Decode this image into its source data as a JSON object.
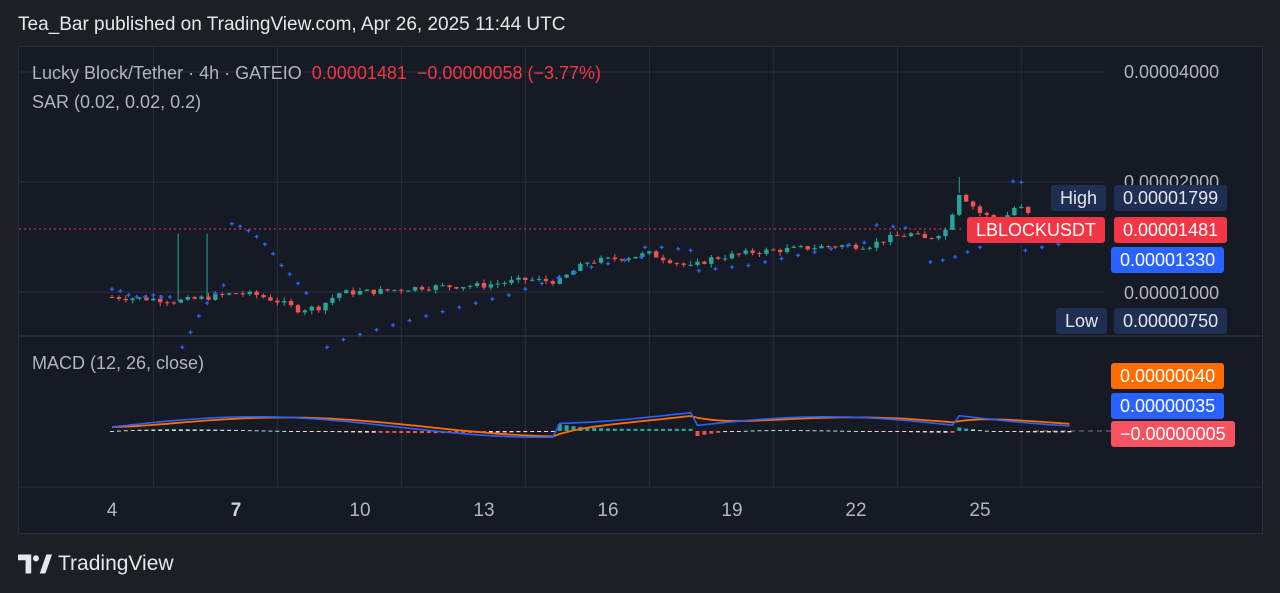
{
  "header": {
    "published": "Tea_Bar published on TradingView.com, Apr 26, 2025 11:44 UTC"
  },
  "legend": {
    "symbol": "Lucky Block/Tether · 4h · GATEIO",
    "price": "0.00001481",
    "change": "−0.00000058 (−3.77%)",
    "sar": "SAR (0.02, 0.02, 0.2)",
    "macd": "MACD (12, 26, close)"
  },
  "price_axis": {
    "labels": [
      "0.00004000",
      "0.00002000",
      "0.00001000"
    ]
  },
  "tags": {
    "high_label": "High",
    "high_value": "0.00001799",
    "symbol": "LBLOCKUSDT",
    "last_value": "0.00001481",
    "sar_value": "0.00001330",
    "low_label": "Low",
    "low_value": "0.00000750",
    "macd_signal": "0.00000040",
    "macd_line": "0.00000035",
    "macd_hist": "−0.00000005"
  },
  "time_axis": {
    "labels": [
      "4",
      "7",
      "10",
      "13",
      "16",
      "19",
      "22",
      "25"
    ],
    "bold_label": "7"
  },
  "footer": {
    "brand": "TradingView"
  },
  "colors": {
    "up": "#26a69a",
    "down": "#ef5350",
    "sar": "#2962ff",
    "macd": "#2962ff",
    "signal": "#ff6d00",
    "background": "#161a25"
  },
  "chart_data": {
    "type": "candlestick",
    "symbol": "Lucky Block/Tether",
    "timeframe": "4h",
    "exchange": "GATEIO",
    "y_ticks": [
      4e-05,
      2e-05,
      1e-05
    ],
    "y_scale": "log",
    "last_price": 1.481e-05,
    "period_high": 1.799e-05,
    "period_low": 7.5e-06,
    "sar_last": 1.33e-05,
    "macd_last": {
      "macd": 3.5e-07,
      "signal": 4e-07,
      "histogram": -5e-08
    },
    "x_day_labels": [
      "4",
      "7",
      "10",
      "13",
      "16",
      "19",
      "22",
      "25"
    ],
    "sar_points": [
      [
        3.0,
        1.02e-05
      ],
      [
        3.2,
        1.01e-05
      ],
      [
        3.4,
        9.9e-06
      ],
      [
        3.6,
        9.8e-06
      ],
      [
        3.8,
        9.8e-06
      ],
      [
        4.0,
        9.9e-06
      ],
      [
        4.2,
        9.8e-06
      ],
      [
        4.4,
        9.8e-06
      ],
      [
        4.7,
        7.6e-06
      ],
      [
        4.9,
        8.2e-06
      ],
      [
        5.1,
        8.9e-06
      ],
      [
        5.3,
        9.5e-06
      ],
      [
        5.5,
        1e-05
      ],
      [
        5.7,
        1.04e-05
      ],
      [
        5.9,
        1.42e-05
      ],
      [
        6.1,
        1.4e-05
      ],
      [
        6.3,
        1.37e-05
      ],
      [
        6.5,
        1.33e-05
      ],
      [
        6.7,
        1.28e-05
      ],
      [
        6.9,
        1.22e-05
      ],
      [
        7.1,
        1.15e-05
      ],
      [
        7.3,
        1.1e-05
      ],
      [
        7.5,
        1.05e-05
      ],
      [
        7.7,
        1e-05
      ],
      [
        8.2,
        7.6e-06
      ],
      [
        8.6,
        7.9e-06
      ],
      [
        9.0,
        8.1e-06
      ],
      [
        9.4,
        8.3e-06
      ],
      [
        9.8,
        8.5e-06
      ],
      [
        10.2,
        8.7e-06
      ],
      [
        10.6,
        8.9e-06
      ],
      [
        11.0,
        9.1e-06
      ],
      [
        11.4,
        9.3e-06
      ],
      [
        11.8,
        9.5e-06
      ],
      [
        12.2,
        9.7e-06
      ],
      [
        12.6,
        9.9e-06
      ],
      [
        13.0,
        1.02e-05
      ],
      [
        13.4,
        1.05e-05
      ],
      [
        13.8,
        1.08e-05
      ],
      [
        14.2,
        1.11e-05
      ],
      [
        14.6,
        1.14e-05
      ],
      [
        15.0,
        1.16e-05
      ],
      [
        15.4,
        1.18e-05
      ],
      [
        15.8,
        1.2e-05
      ],
      [
        15.9,
        1.26e-05
      ],
      [
        16.3,
        1.26e-05
      ],
      [
        16.7,
        1.25e-05
      ],
      [
        17.0,
        1.24e-05
      ],
      [
        17.2,
        1.12e-05
      ],
      [
        17.6,
        1.13e-05
      ],
      [
        18.0,
        1.14e-05
      ],
      [
        18.4,
        1.15e-05
      ],
      [
        18.8,
        1.17e-05
      ],
      [
        19.2,
        1.19e-05
      ],
      [
        19.6,
        1.21e-05
      ],
      [
        20.0,
        1.23e-05
      ],
      [
        20.4,
        1.25e-05
      ],
      [
        20.8,
        1.27e-05
      ],
      [
        21.2,
        1.29e-05
      ],
      [
        21.5,
        1.41e-05
      ],
      [
        21.9,
        1.4e-05
      ],
      [
        22.2,
        1.39e-05
      ],
      [
        22.8,
        1.17e-05
      ],
      [
        23.1,
        1.18e-05
      ],
      [
        23.4,
        1.2e-05
      ],
      [
        23.7,
        1.23e-05
      ],
      [
        24.0,
        1.26e-05
      ],
      [
        24.3,
        1.3e-05
      ],
      [
        24.8,
        1.76e-05
      ],
      [
        25.0,
        1.75e-05
      ],
      [
        25.1,
        1.24e-05
      ],
      [
        25.5,
        1.26e-05
      ],
      [
        25.9,
        1.28e-05
      ],
      [
        26.2,
        1.3e-05
      ]
    ]
  }
}
